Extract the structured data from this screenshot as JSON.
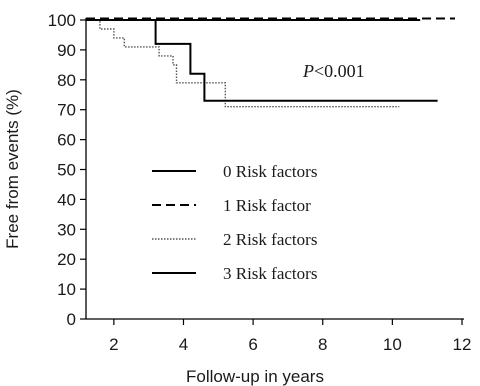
{
  "chart_data": {
    "type": "line",
    "xlabel": "Follow-up in years",
    "ylabel": "Free from events (%)",
    "xlim": [
      1.2,
      12
    ],
    "ylim": [
      0,
      100
    ],
    "xticks": [
      2,
      4,
      6,
      8,
      10,
      12
    ],
    "yticks": [
      0,
      10,
      20,
      30,
      40,
      50,
      60,
      70,
      80,
      90,
      100
    ],
    "annotation": {
      "italic": "P",
      "text": "<0.001"
    },
    "legend": {
      "placement": "center-left"
    },
    "series": [
      {
        "name": "0 Risk factors",
        "style": "solid",
        "color": "#000000",
        "points": [
          [
            1.2,
            100
          ],
          [
            10.8,
            100
          ]
        ]
      },
      {
        "name": "1 Risk factor",
        "style": "dashed",
        "color": "#000000",
        "points": [
          [
            1.2,
            100.5
          ],
          [
            11.8,
            100.5
          ]
        ]
      },
      {
        "name": "2 Risk factors",
        "style": "dotted",
        "color": "#555555",
        "points": [
          [
            1.2,
            100
          ],
          [
            1.6,
            100
          ],
          [
            1.6,
            97
          ],
          [
            2.0,
            97
          ],
          [
            2.0,
            94
          ],
          [
            2.3,
            94
          ],
          [
            2.3,
            91
          ],
          [
            3.3,
            91
          ],
          [
            3.3,
            88
          ],
          [
            3.7,
            88
          ],
          [
            3.7,
            85
          ],
          [
            3.8,
            85
          ],
          [
            3.8,
            79
          ],
          [
            5.2,
            79
          ],
          [
            5.2,
            71
          ],
          [
            10.2,
            71
          ]
        ]
      },
      {
        "name": "3 Risk factors",
        "style": "solid",
        "color": "#000000",
        "points": [
          [
            1.2,
            100
          ],
          [
            3.2,
            100
          ],
          [
            3.2,
            92
          ],
          [
            4.2,
            92
          ],
          [
            4.2,
            82
          ],
          [
            4.6,
            82
          ],
          [
            4.6,
            73
          ],
          [
            11.3,
            73
          ]
        ]
      }
    ]
  }
}
